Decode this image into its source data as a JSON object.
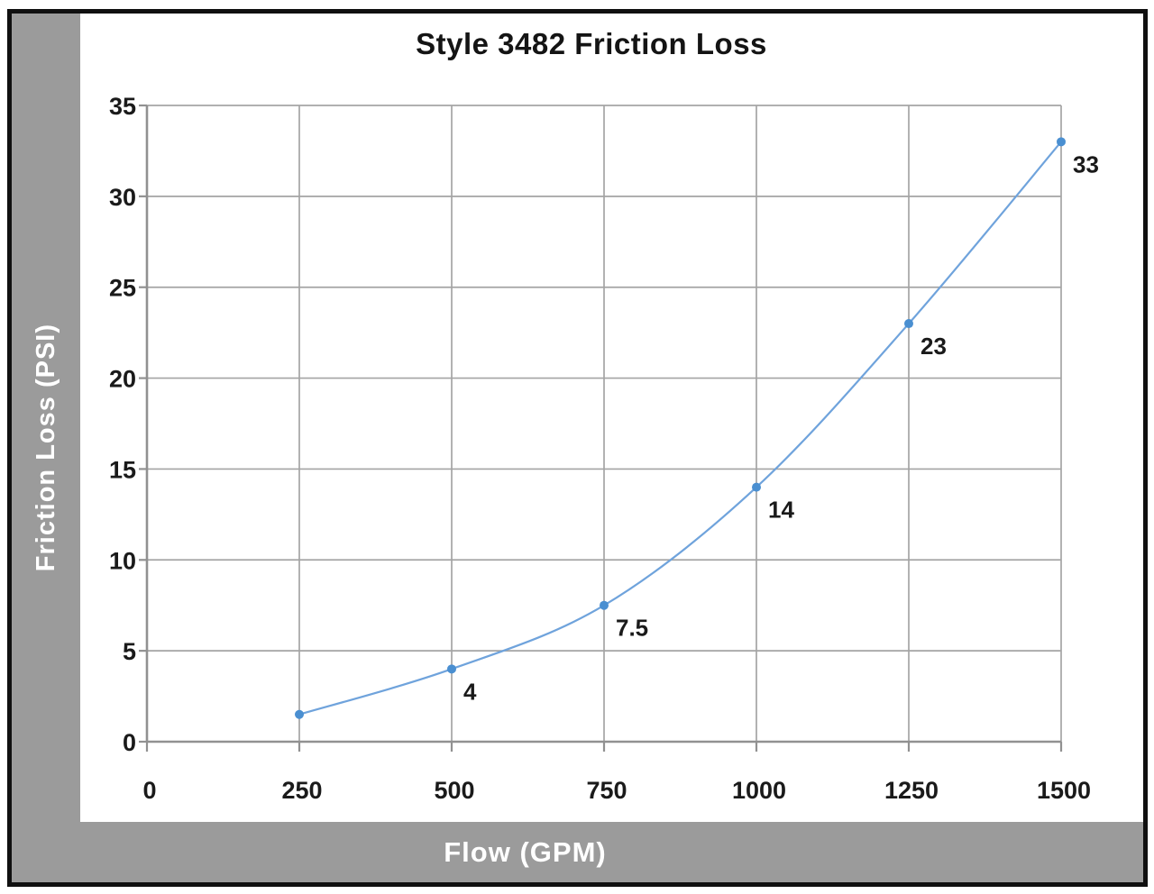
{
  "chart_data": {
    "type": "line",
    "title": "Style 3482 Friction Loss",
    "xlabel": "Flow (GPM)",
    "ylabel": "Friction Loss (PSI)",
    "xlim": [
      0,
      1500
    ],
    "ylim": [
      0,
      35
    ],
    "xticks": [
      0,
      250,
      500,
      750,
      1000,
      1250,
      1500
    ],
    "yticks": [
      0,
      5,
      10,
      15,
      20,
      25,
      30,
      35
    ],
    "grid": true,
    "legend": "none",
    "series": [
      {
        "name": "Friction Loss",
        "x": [
          250,
          500,
          750,
          1000,
          1250,
          1500
        ],
        "y": [
          1.5,
          4,
          7.5,
          14,
          23,
          33
        ],
        "point_labels": [
          "",
          "4",
          "7.5",
          "14",
          "23",
          "33"
        ]
      }
    ],
    "colors": {
      "band_gray": "#9b9b9b",
      "frame_black": "#101010",
      "gridline": "#a4a4a4",
      "axis": "#919191",
      "line_blue": "#6fa3dc",
      "marker_blue": "#4a8fd1",
      "label_text": "#1a1a1a"
    }
  }
}
